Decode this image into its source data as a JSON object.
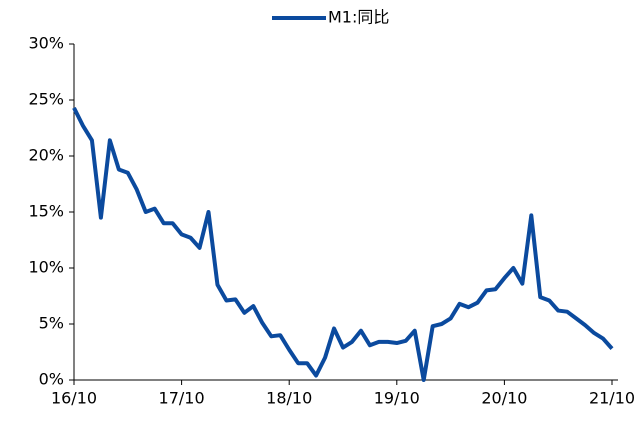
{
  "chart_data": {
    "type": "line",
    "categories": [
      "16/10",
      null,
      null,
      null,
      null,
      null,
      null,
      null,
      null,
      null,
      null,
      null,
      "17/10",
      null,
      null,
      null,
      null,
      null,
      null,
      null,
      null,
      null,
      null,
      null,
      "18/10",
      null,
      null,
      null,
      null,
      null,
      null,
      null,
      null,
      null,
      null,
      null,
      "19/10",
      null,
      null,
      null,
      null,
      null,
      null,
      null,
      null,
      null,
      null,
      null,
      "20/10",
      null,
      null,
      null,
      null,
      null,
      null,
      null,
      null,
      null,
      null,
      null,
      "21/10"
    ],
    "series": [
      {
        "name": "M1:同比",
        "color": "#0b4a9e",
        "values": [
          24.3,
          22.7,
          21.4,
          14.5,
          21.4,
          18.8,
          18.5,
          17.0,
          15.0,
          15.3,
          14.0,
          14.0,
          13.0,
          12.7,
          11.8,
          15.0,
          8.5,
          7.1,
          7.2,
          6.0,
          6.6,
          5.1,
          3.9,
          4.0,
          2.7,
          1.5,
          1.5,
          0.4,
          2.0,
          4.6,
          2.9,
          3.4,
          4.4,
          3.1,
          3.4,
          3.4,
          3.3,
          3.5,
          4.4,
          0.0,
          4.8,
          5.0,
          5.5,
          6.8,
          6.5,
          6.9,
          8.0,
          8.1,
          9.1,
          10.0,
          8.6,
          14.7,
          7.4,
          7.1,
          6.2,
          6.1,
          5.5,
          4.9,
          4.2,
          3.7,
          2.8
        ]
      }
    ],
    "ylim": [
      0,
      30
    ],
    "yticks": [
      {
        "value": 0,
        "label": "0%"
      },
      {
        "value": 5,
        "label": "5%"
      },
      {
        "value": 10,
        "label": "10%"
      },
      {
        "value": 15,
        "label": "15%"
      },
      {
        "value": 20,
        "label": "20%"
      },
      {
        "value": 25,
        "label": "25%"
      },
      {
        "value": 30,
        "label": "30%"
      }
    ],
    "legend": "top"
  }
}
